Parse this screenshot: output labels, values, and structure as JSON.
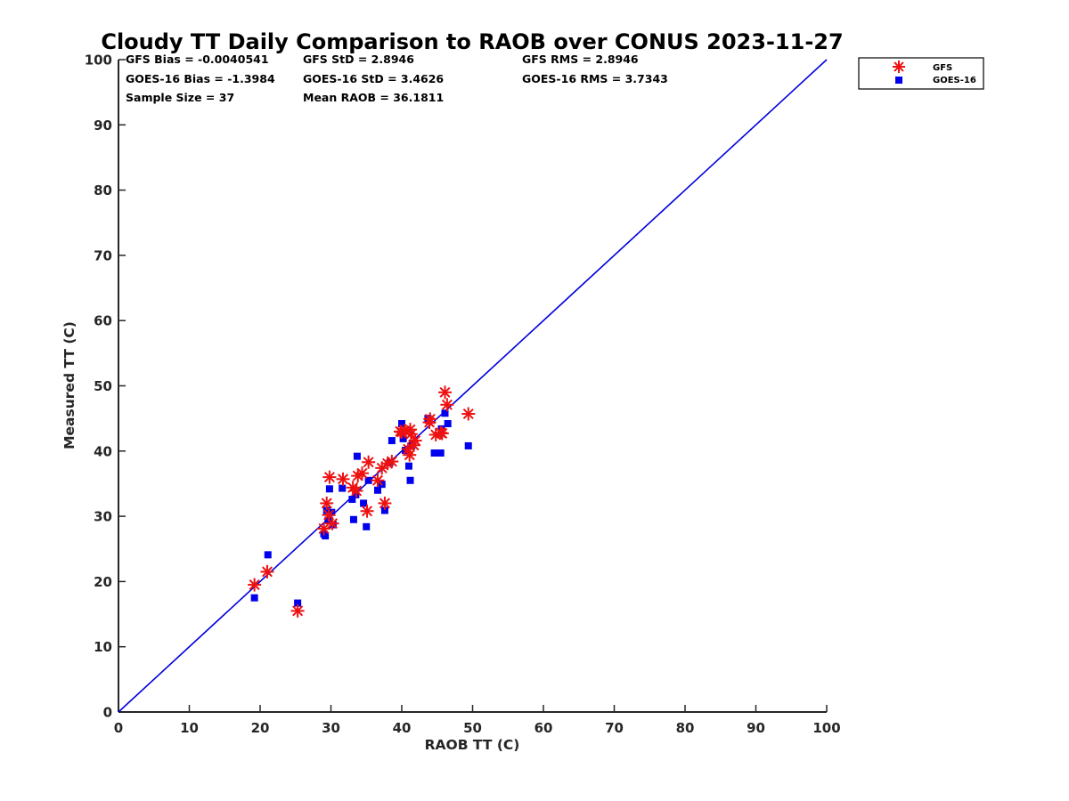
{
  "chart_data": {
    "type": "scatter",
    "title": "Cloudy TT Daily Comparison to RAOB over CONUS 2023-11-27",
    "xlabel": "RAOB TT (C)",
    "ylabel": "Measured TT (C)",
    "xlim": [
      0,
      100
    ],
    "ylim": [
      0,
      100
    ],
    "xticks": [
      "0",
      "10",
      "20",
      "30",
      "40",
      "50",
      "60",
      "70",
      "80",
      "90",
      "100"
    ],
    "yticks": [
      "0",
      "10",
      "20",
      "30",
      "40",
      "50",
      "60",
      "70",
      "80",
      "90",
      "100"
    ],
    "grid": false,
    "legend_position": "top-right (outside plot)",
    "reference_line": {
      "from": [
        0,
        0
      ],
      "to": [
        100,
        100
      ],
      "color": "#0000dd"
    },
    "stats": [
      [
        "GFS Bias = -0.0040541",
        "GFS StD = 2.8946",
        "GFS RMS = 2.8946"
      ],
      [
        "GOES-16 Bias = -1.3984",
        "GOES-16 StD = 3.4626",
        "GOES-16 RMS = 3.7343"
      ],
      [
        "Sample Size = 37",
        "Mean RAOB = 36.1811",
        ""
      ]
    ],
    "series": [
      {
        "name": "GFS",
        "marker": "asterisk",
        "color": "#ee1111",
        "points": [
          [
            19.2,
            19.5
          ],
          [
            21.0,
            21.5
          ],
          [
            25.3,
            15.5
          ],
          [
            29.0,
            28.1
          ],
          [
            29.4,
            32.0
          ],
          [
            29.7,
            30.2
          ],
          [
            29.8,
            36.0
          ],
          [
            30.2,
            28.9
          ],
          [
            31.7,
            35.7
          ],
          [
            33.1,
            34.4
          ],
          [
            33.6,
            33.9
          ],
          [
            33.8,
            36.2
          ],
          [
            34.4,
            36.6
          ],
          [
            35.1,
            30.8
          ],
          [
            35.3,
            38.3
          ],
          [
            36.6,
            35.5
          ],
          [
            37.2,
            37.4
          ],
          [
            37.6,
            32.0
          ],
          [
            38.0,
            38.1
          ],
          [
            38.6,
            38.4
          ],
          [
            40.0,
            42.9
          ],
          [
            40.4,
            43.1
          ],
          [
            40.9,
            40.3
          ],
          [
            41.1,
            39.4
          ],
          [
            41.2,
            43.3
          ],
          [
            41.3,
            42.6
          ],
          [
            41.7,
            40.9
          ],
          [
            41.9,
            41.6
          ],
          [
            43.9,
            44.4
          ],
          [
            44.8,
            42.5
          ],
          [
            45.5,
            42.8
          ],
          [
            45.7,
            42.7
          ],
          [
            46.1,
            49.0
          ],
          [
            46.4,
            47.1
          ],
          [
            49.4,
            45.7
          ],
          [
            44.0,
            44.9
          ],
          [
            39.8,
            43.0
          ]
        ]
      },
      {
        "name": "GOES-16",
        "marker": "square",
        "color": "#0000ee",
        "points": [
          [
            19.2,
            17.5
          ],
          [
            21.1,
            24.1
          ],
          [
            25.3,
            16.7
          ],
          [
            29.0,
            27.3
          ],
          [
            29.2,
            27.0
          ],
          [
            29.4,
            30.9
          ],
          [
            29.6,
            29.4
          ],
          [
            29.8,
            34.2
          ],
          [
            30.1,
            30.6
          ],
          [
            30.3,
            28.7
          ],
          [
            31.6,
            34.3
          ],
          [
            33.0,
            32.6
          ],
          [
            33.2,
            29.5
          ],
          [
            33.5,
            33.3
          ],
          [
            33.7,
            39.2
          ],
          [
            34.6,
            32.0
          ],
          [
            35.0,
            28.4
          ],
          [
            35.3,
            35.5
          ],
          [
            36.6,
            34.0
          ],
          [
            37.2,
            34.9
          ],
          [
            37.6,
            30.9
          ],
          [
            38.3,
            38.2
          ],
          [
            38.6,
            41.6
          ],
          [
            40.0,
            44.2
          ],
          [
            40.2,
            41.9
          ],
          [
            40.5,
            40.1
          ],
          [
            41.0,
            37.7
          ],
          [
            41.2,
            35.5
          ],
          [
            41.5,
            41.2
          ],
          [
            43.7,
            45.0
          ],
          [
            44.6,
            39.7
          ],
          [
            45.6,
            43.4
          ],
          [
            45.5,
            39.7
          ],
          [
            46.1,
            45.8
          ],
          [
            46.5,
            44.2
          ],
          [
            49.4,
            40.8
          ],
          [
            41.4,
            40.8
          ]
        ]
      }
    ]
  }
}
